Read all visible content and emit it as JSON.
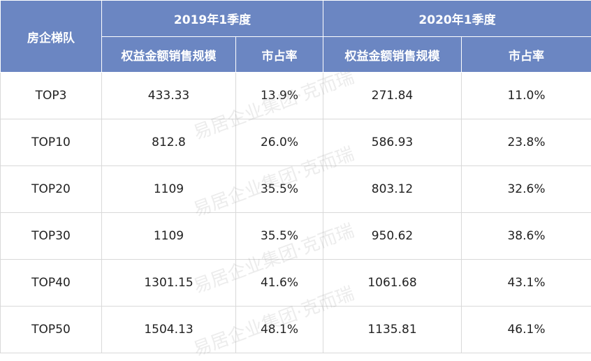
{
  "header": {
    "tier_label": "房企梯队",
    "period_2019": "2019年1季度",
    "period_2020": "2020年1季度",
    "equity_sales_2019": "权益金额销售规模",
    "market_share_2019": "市占率",
    "equity_sales_2020": "权益金额销售规模",
    "market_share_2020": "市占率"
  },
  "rows": [
    {
      "tier": "TOP3",
      "sales_2019": "433.33",
      "share_2019": "13.9%",
      "sales_2020": "271.84",
      "share_2020": "11.0%"
    },
    {
      "tier": "TOP10",
      "sales_2019": "812.8",
      "share_2019": "26.0%",
      "sales_2020": "586.93",
      "share_2020": "23.8%"
    },
    {
      "tier": "TOP20",
      "sales_2019": "1109",
      "share_2019": "35.5%",
      "sales_2020": "803.12",
      "share_2020": "32.6%"
    },
    {
      "tier": "TOP30",
      "sales_2019": "1109",
      "share_2019": "35.5%",
      "sales_2020": "950.62",
      "share_2020": "38.6%"
    },
    {
      "tier": "TOP40",
      "sales_2019": "1301.15",
      "share_2019": "41.6%",
      "sales_2020": "1061.68",
      "share_2020": "43.1%"
    },
    {
      "tier": "TOP50",
      "sales_2019": "1504.13",
      "share_2019": "48.1%",
      "sales_2020": "1135.81",
      "share_2020": "46.1%"
    }
  ],
  "watermark": "易居企业集团·克而瑞"
}
